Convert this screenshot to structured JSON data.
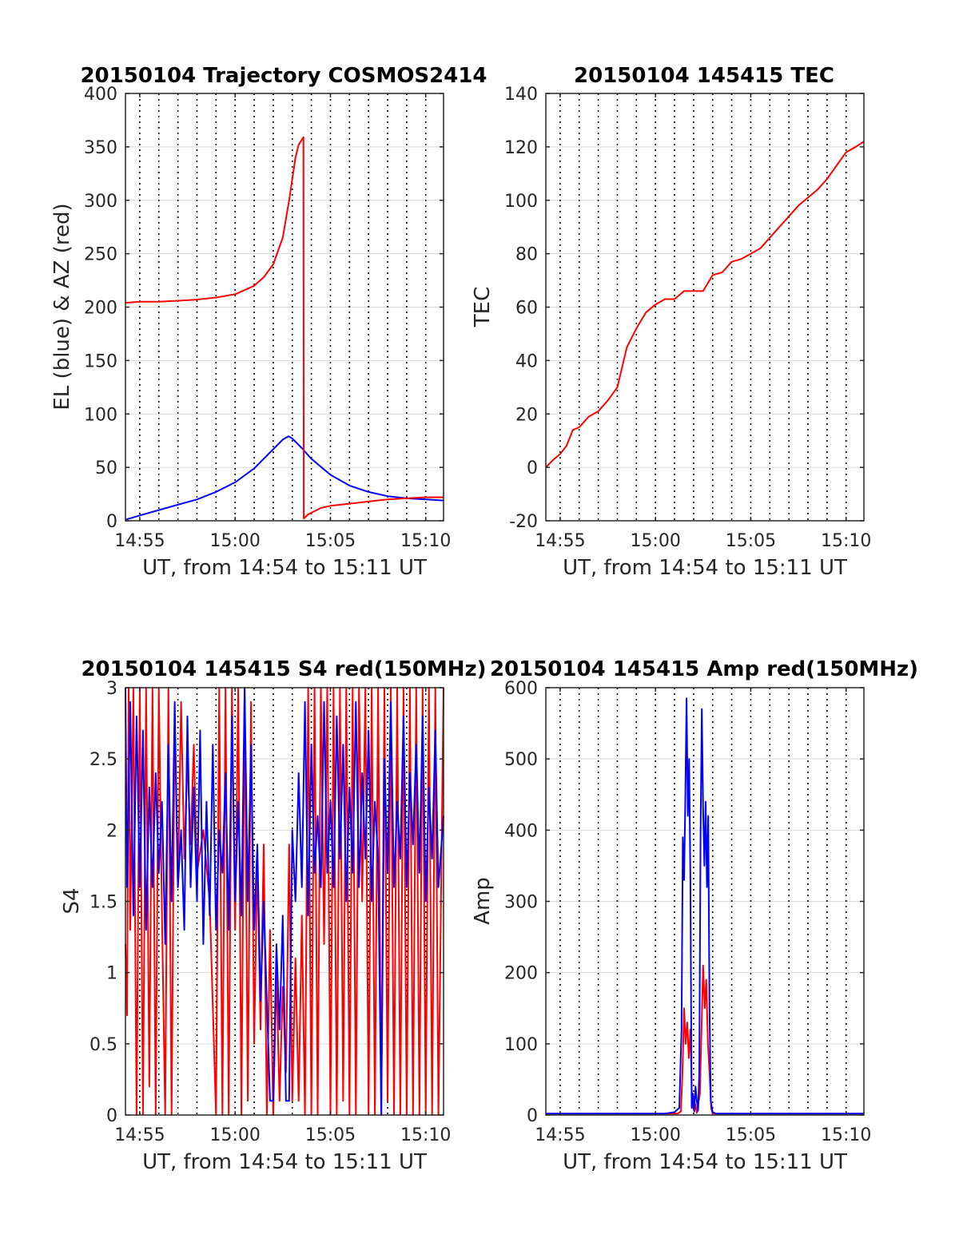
{
  "figure": {
    "colors": {
      "red": "#ff0000",
      "blue": "#0000ff",
      "grid": "#000000",
      "axis": "#262626",
      "hgrid": "#d9d9d9"
    }
  },
  "chart_data": [
    {
      "type": "line",
      "title": "20150104 Trajectory COSMOS2414",
      "xlabel": "UT, from 14:54 to 15:11 UT",
      "ylabel": "EL (blue) & AZ (red)",
      "xlim": [
        "14:54:15",
        "15:10:56"
      ],
      "ylim": [
        0,
        400
      ],
      "x_ticks": [
        "14:55",
        "15:00",
        "15:05",
        "15:10"
      ],
      "y_ticks": [
        "0",
        "50",
        "100",
        "150",
        "200",
        "250",
        "300",
        "350",
        "400"
      ],
      "grid": true,
      "series": [
        {
          "color": "#0000ff",
          "x": [
            "14:54:15",
            "14:55:00",
            "14:56:00",
            "14:57:00",
            "14:58:00",
            "14:59:00",
            "15:00:00",
            "15:01:00",
            "15:01:30",
            "15:02:00",
            "15:02:30",
            "15:02:48",
            "15:03:00",
            "15:03:30",
            "15:04:00",
            "15:05:00",
            "15:06:00",
            "15:07:00",
            "15:08:00",
            "15:09:00",
            "15:10:00",
            "15:10:56"
          ],
          "values": [
            1,
            5,
            10,
            15,
            20,
            27,
            36,
            49,
            58,
            67,
            76,
            79,
            77,
            68,
            58,
            43,
            33,
            27,
            23,
            21,
            20,
            19
          ]
        },
        {
          "color": "#ff0000",
          "x": [
            "14:54:15",
            "14:55:00",
            "14:56:00",
            "14:57:00",
            "14:58:00",
            "14:59:00",
            "15:00:00",
            "15:01:00",
            "15:01:30",
            "15:02:00",
            "15:02:30",
            "15:02:50",
            "15:03:10",
            "15:03:20",
            "15:03:35",
            "15:03:36",
            "15:03:50",
            "15:04:30",
            "15:05:00",
            "15:06:00",
            "15:07:00",
            "15:08:00",
            "15:09:00",
            "15:10:00",
            "15:10:56"
          ],
          "values": [
            204,
            205,
            205,
            206,
            207,
            209,
            212,
            220,
            228,
            240,
            265,
            300,
            340,
            352,
            359,
            2,
            6,
            12,
            14,
            16,
            18,
            20,
            21,
            22,
            22
          ]
        }
      ]
    },
    {
      "type": "line",
      "title": "20150104 145415 TEC",
      "xlabel": "UT, from 14:54 to 15:11 UT",
      "ylabel": "TEC",
      "xlim": [
        "14:54:15",
        "15:10:56"
      ],
      "ylim": [
        -20,
        140
      ],
      "x_ticks": [
        "14:55",
        "15:00",
        "15:05",
        "15:10"
      ],
      "y_ticks": [
        "-20",
        "0",
        "20",
        "40",
        "60",
        "80",
        "100",
        "120",
        "140"
      ],
      "grid": true,
      "series": [
        {
          "color": "#ff0000",
          "x": [
            "14:54:15",
            "14:54:40",
            "14:55:00",
            "14:55:20",
            "14:55:40",
            "14:56:00",
            "14:56:30",
            "14:57:00",
            "14:57:30",
            "14:58:00",
            "14:58:30",
            "14:59:00",
            "14:59:30",
            "15:00:00",
            "15:00:30",
            "15:01:00",
            "15:01:30",
            "15:02:00",
            "15:02:30",
            "15:03:00",
            "15:03:30",
            "15:04:00",
            "15:04:30",
            "15:05:00",
            "15:05:30",
            "15:06:00",
            "15:06:30",
            "15:07:00",
            "15:07:30",
            "15:08:00",
            "15:08:30",
            "15:09:00",
            "15:09:30",
            "15:10:00",
            "15:10:30",
            "15:10:56"
          ],
          "values": [
            0,
            3,
            5,
            8,
            14,
            15,
            19,
            21,
            25,
            30,
            45,
            52,
            58,
            61,
            63,
            63,
            66,
            66,
            66,
            72,
            73,
            77,
            78,
            80,
            82,
            86,
            90,
            94,
            98,
            101,
            104,
            108,
            113,
            118,
            120,
            122
          ]
        }
      ]
    },
    {
      "type": "line",
      "title": "20150104 145415 S4 red(150MHz)",
      "xlabel": "UT, from 14:54 to 15:11 UT",
      "ylabel": "S4",
      "xlim": [
        "14:54:15",
        "15:10:56"
      ],
      "ylim": [
        0,
        3
      ],
      "x_ticks": [
        "14:55",
        "15:00",
        "15:05",
        "15:10"
      ],
      "y_ticks": [
        "0",
        "0.5",
        "1",
        "1.5",
        "2",
        "2.5",
        "3"
      ],
      "grid": true,
      "series": [
        {
          "color": "#ff0000",
          "x": [
            "14:54:15",
            "14:54:20",
            "14:54:25",
            "14:54:30",
            "14:54:40",
            "14:54:50",
            "14:55:00",
            "14:55:10",
            "14:55:20",
            "14:55:30",
            "14:55:40",
            "14:55:50",
            "14:56:00",
            "14:56:10",
            "14:56:20",
            "14:56:30",
            "14:56:40",
            "14:56:50",
            "14:57:00",
            "14:57:10",
            "14:57:20",
            "14:57:30",
            "14:57:40",
            "14:57:50",
            "14:58:00",
            "14:58:20",
            "14:58:40",
            "14:59:00",
            "14:59:10",
            "14:59:20",
            "14:59:30",
            "14:59:40",
            "14:59:50",
            "15:00:00",
            "15:00:10",
            "15:00:20",
            "15:00:30",
            "15:00:40",
            "15:00:50",
            "15:01:00",
            "15:01:10",
            "15:01:20",
            "15:01:30",
            "15:01:40",
            "15:01:50",
            "15:02:00",
            "15:02:10",
            "15:02:20",
            "15:02:30",
            "15:02:40",
            "15:02:50",
            "15:03:00",
            "15:03:10",
            "15:03:20",
            "15:03:30",
            "15:03:40",
            "15:03:50",
            "15:04:00",
            "15:04:10",
            "15:04:20",
            "15:04:30",
            "15:04:40",
            "15:04:50",
            "15:05:00",
            "15:05:10",
            "15:05:20",
            "15:05:30",
            "15:05:40",
            "15:05:50",
            "15:06:00",
            "15:06:10",
            "15:06:20",
            "15:06:30",
            "15:06:40",
            "15:06:50",
            "15:07:00",
            "15:07:10",
            "15:07:20",
            "15:07:30",
            "15:07:40",
            "15:07:50",
            "15:08:00",
            "15:08:10",
            "15:08:20",
            "15:08:30",
            "15:08:40",
            "15:08:50",
            "15:09:00",
            "15:09:10",
            "15:09:20",
            "15:09:30",
            "15:09:40",
            "15:09:50",
            "15:10:00",
            "15:10:10",
            "15:10:20",
            "15:10:30",
            "15:10:40",
            "15:10:56"
          ],
          "values": [
            1.2,
            0.7,
            3.0,
            1.3,
            3.0,
            0.0,
            3.0,
            0.0,
            3.0,
            0.2,
            3.0,
            0.0,
            3.0,
            1.4,
            0.0,
            3.0,
            0.0,
            2.8,
            1.6,
            2.9,
            1.8,
            2.5,
            1.9,
            2.6,
            1.7,
            2.0,
            1.5,
            0.0,
            3.0,
            0.0,
            3.0,
            0.0,
            3.0,
            1.3,
            3.0,
            0.0,
            3.0,
            0.1,
            2.9,
            0.5,
            1.8,
            0.6,
            1.9,
            0.0,
            1.3,
            0.0,
            1.0,
            0.1,
            0.9,
            0.3,
            1.9,
            0.1,
            1.1,
            0.1,
            1.4,
            0.0,
            3.0,
            0.0,
            3.0,
            0.0,
            3.0,
            1.2,
            3.0,
            0.0,
            3.0,
            0.0,
            3.0,
            0.1,
            3.0,
            0.0,
            3.0,
            0.0,
            3.0,
            1.5,
            3.0,
            0.0,
            3.0,
            0.0,
            3.0,
            0.0,
            3.0,
            0.1,
            3.0,
            0.0,
            3.0,
            0.0,
            3.0,
            0.0,
            3.0,
            0.0,
            3.0,
            0.0,
            3.0,
            0.0,
            3.0,
            0.0,
            3.0,
            0.0,
            3.0
          ]
        },
        {
          "color": "#0000ff",
          "x": [
            "14:54:15",
            "14:54:20",
            "14:54:30",
            "14:54:40",
            "14:54:50",
            "14:55:00",
            "14:55:10",
            "14:55:20",
            "14:55:30",
            "14:55:40",
            "14:55:50",
            "14:56:00",
            "14:56:10",
            "14:56:20",
            "14:56:30",
            "14:56:40",
            "14:56:50",
            "14:57:00",
            "14:57:10",
            "14:57:20",
            "14:57:30",
            "14:57:40",
            "14:57:50",
            "14:58:00",
            "14:58:10",
            "14:58:20",
            "14:58:30",
            "14:58:40",
            "14:58:50",
            "14:59:00",
            "14:59:10",
            "14:59:20",
            "14:59:30",
            "14:59:40",
            "14:59:50",
            "15:00:00",
            "15:00:10",
            "15:00:20",
            "15:00:30",
            "15:00:40",
            "15:00:50",
            "15:01:00",
            "15:01:10",
            "15:01:20",
            "15:01:30",
            "15:01:40",
            "15:01:50",
            "15:02:00",
            "15:02:10",
            "15:02:20",
            "15:02:30",
            "15:02:40",
            "15:02:50",
            "15:03:00",
            "15:03:10",
            "15:03:20",
            "15:03:30",
            "15:03:40",
            "15:03:50",
            "15:04:00",
            "15:04:10",
            "15:04:20",
            "15:04:30",
            "15:04:40",
            "15:04:50",
            "15:05:00",
            "15:05:10",
            "15:05:20",
            "15:05:30",
            "15:05:40",
            "15:05:50",
            "15:06:00",
            "15:06:10",
            "15:06:20",
            "15:06:30",
            "15:06:40",
            "15:06:50",
            "15:07:00",
            "15:07:10",
            "15:07:20",
            "15:07:30",
            "15:07:40",
            "15:07:50",
            "15:08:00",
            "15:08:10",
            "15:08:20",
            "15:08:30",
            "15:08:40",
            "15:08:50",
            "15:09:00",
            "15:09:10",
            "15:09:20",
            "15:09:30",
            "15:09:40",
            "15:09:50",
            "15:10:00",
            "15:10:10",
            "15:10:20",
            "15:10:30",
            "15:10:40",
            "15:10:56"
          ],
          "values": [
            3.0,
            1.6,
            2.9,
            1.4,
            2.8,
            1.6,
            2.7,
            1.3,
            2.3,
            1.6,
            2.4,
            1.7,
            2.2,
            1.2,
            2.6,
            1.5,
            2.9,
            1.6,
            2.0,
            1.3,
            2.8,
            1.6,
            2.3,
            1.5,
            2.7,
            1.2,
            2.2,
            1.4,
            2.6,
            1.3,
            2.0,
            1.7,
            2.4,
            1.3,
            2.8,
            1.5,
            2.2,
            1.4,
            3.0,
            1.5,
            2.6,
            1.3,
            1.9,
            0.8,
            1.5,
            0.8,
            0.1,
            0.1,
            1.2,
            0.6,
            1.4,
            0.1,
            0.1,
            2.0,
            1.5,
            2.4,
            1.6,
            2.9,
            1.4,
            2.6,
            1.7,
            2.1,
            1.6,
            2.9,
            1.7,
            2.2,
            1.6,
            2.8,
            1.8,
            2.6,
            1.5,
            2.3,
            1.7,
            2.9,
            1.6,
            2.4,
            1.8,
            2.7,
            1.5,
            2.2,
            1.8,
            0.0,
            2.5,
            1.7,
            2.9,
            1.6,
            2.2,
            1.8,
            2.8,
            1.6,
            2.4,
            1.9,
            2.6,
            1.7,
            2.8,
            1.5,
            2.3,
            1.8,
            2.7,
            1.6,
            2.1
          ]
        }
      ]
    },
    {
      "type": "line",
      "title": "20150104 145415 Amp red(150MHz)",
      "xlabel": "UT, from 14:54 to 15:11 UT",
      "ylabel": "Amp",
      "xlim": [
        "14:54:15",
        "15:10:56"
      ],
      "ylim": [
        0,
        600
      ],
      "x_ticks": [
        "14:55",
        "15:00",
        "15:05",
        "15:10"
      ],
      "y_ticks": [
        "0",
        "100",
        "200",
        "300",
        "400",
        "500",
        "600"
      ],
      "grid": true,
      "series": [
        {
          "color": "#ff0000",
          "x": [
            "14:54:15",
            "15:01:10",
            "15:01:20",
            "15:01:25",
            "15:01:30",
            "15:01:35",
            "15:01:40",
            "15:01:45",
            "15:01:50",
            "15:01:55",
            "15:02:00",
            "15:02:05",
            "15:02:10",
            "15:02:20",
            "15:02:25",
            "15:02:30",
            "15:02:35",
            "15:02:40",
            "15:02:45",
            "15:02:50",
            "15:02:55",
            "15:03:00",
            "15:03:10",
            "15:10:56"
          ],
          "values": [
            2,
            2,
            5,
            60,
            150,
            100,
            130,
            80,
            120,
            20,
            8,
            15,
            3,
            30,
            120,
            210,
            150,
            190,
            100,
            60,
            10,
            2,
            2,
            2
          ]
        },
        {
          "color": "#0000ff",
          "x": [
            "14:54:15",
            "15:00:30",
            "15:01:00",
            "15:01:15",
            "15:01:22",
            "15:01:26",
            "15:01:30",
            "15:01:34",
            "15:01:38",
            "15:01:42",
            "15:01:46",
            "15:01:50",
            "15:01:54",
            "15:01:58",
            "15:02:02",
            "15:02:06",
            "15:02:10",
            "15:02:14",
            "15:02:18",
            "15:02:22",
            "15:02:26",
            "15:02:30",
            "15:02:34",
            "15:02:38",
            "15:02:42",
            "15:02:46",
            "15:02:50",
            "15:02:54",
            "15:03:00",
            "15:03:10",
            "15:10:56"
          ],
          "values": [
            2,
            2,
            4,
            10,
            120,
            390,
            330,
            440,
            585,
            420,
            500,
            330,
            10,
            30,
            5,
            40,
            20,
            6,
            60,
            390,
            570,
            430,
            350,
            440,
            320,
            420,
            150,
            20,
            4,
            2,
            2
          ]
        }
      ]
    }
  ]
}
